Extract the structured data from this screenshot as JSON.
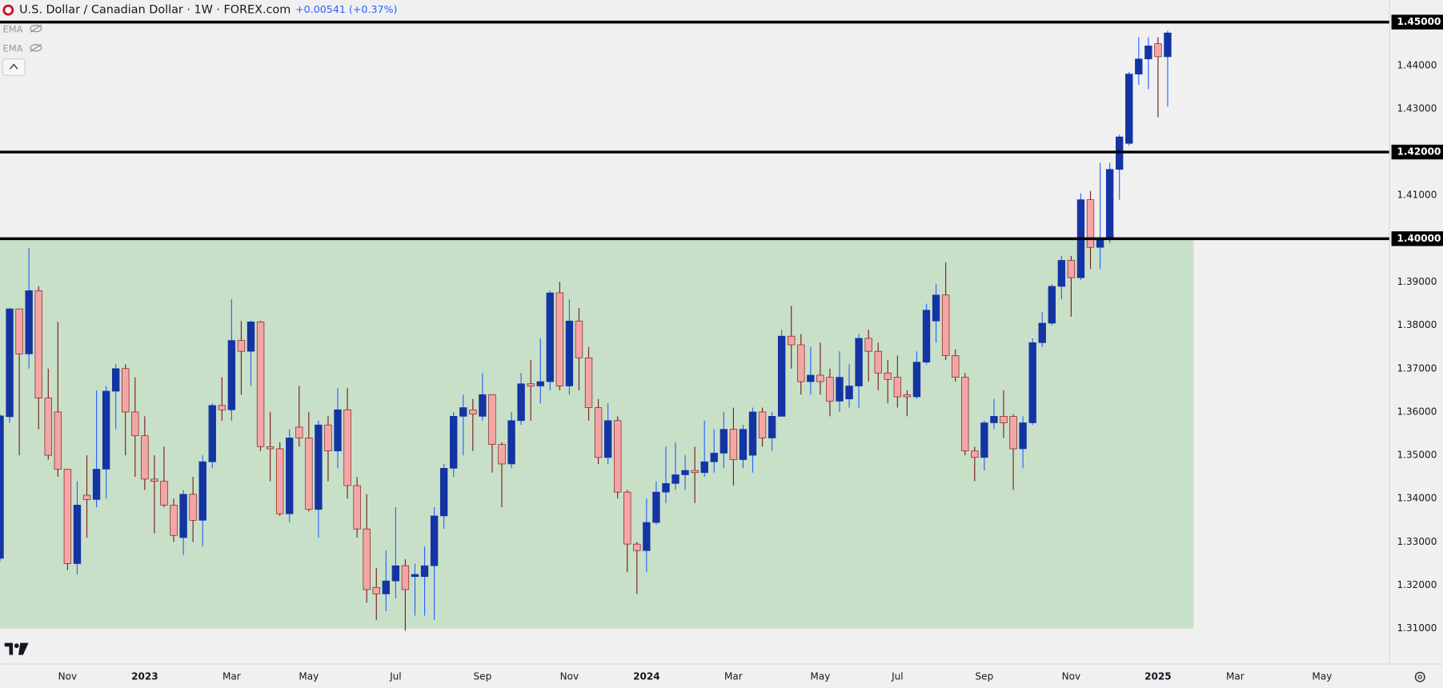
{
  "chart_data": {
    "type": "candlestick",
    "title": "U.S. Dollar / Canadian Dollar · 1W · FOREX.com",
    "change": "+0.00541 (+0.37%)",
    "indicators": [
      "EMA",
      "EMA"
    ],
    "categories": [
      null,
      null,
      null,
      null,
      null,
      null,
      null,
      "Nov",
      null,
      null,
      null,
      null,
      null,
      null,
      null,
      "2023",
      null,
      null,
      null,
      null,
      null,
      null,
      null,
      null,
      "Mar",
      null,
      null,
      null,
      null,
      null,
      null,
      null,
      "May",
      null,
      null,
      null,
      null,
      null,
      null,
      null,
      null,
      "Jul",
      null,
      null,
      null,
      null,
      null,
      null,
      null,
      null,
      "Sep",
      null,
      null,
      null,
      null,
      null,
      null,
      null,
      null,
      "Nov",
      null,
      null,
      null,
      null,
      null,
      null,
      null,
      "2024",
      null,
      null,
      null,
      null,
      null,
      null,
      null,
      null,
      "Mar",
      null,
      null,
      null,
      null,
      null,
      null,
      null,
      null,
      "May",
      null,
      null,
      null,
      null,
      null,
      null,
      null,
      "Jul",
      null,
      null,
      null,
      null,
      null,
      null,
      null,
      null,
      "Sep",
      null,
      null,
      null,
      null,
      null,
      null,
      null,
      null,
      "Nov",
      null,
      null,
      null,
      null,
      null,
      null,
      null,
      null,
      "2025",
      null,
      null,
      null,
      null,
      null,
      null,
      null,
      "Mar",
      null,
      null,
      null,
      null,
      null,
      null,
      null,
      null,
      "May",
      null,
      null,
      null,
      null,
      null,
      null
    ],
    "open": [
      1.3262,
      1.3589,
      1.3838,
      1.3734,
      1.388,
      1.3632,
      1.36,
      1.3468,
      1.325,
      1.3408,
      1.3398,
      1.3468,
      1.3648,
      1.37,
      1.36,
      1.3545,
      1.3445,
      1.344,
      1.3385,
      1.331,
      1.341,
      1.335,
      1.3485,
      1.3615,
      1.3605,
      1.3765,
      1.374,
      1.3808,
      1.352,
      1.3515,
      1.3365,
      1.3565,
      1.354,
      1.3375,
      1.357,
      1.351,
      1.3605,
      1.343,
      1.333,
      1.3195,
      1.318,
      1.321,
      1.3245,
      1.322,
      1.322,
      1.3245,
      1.336,
      1.347,
      1.359,
      1.3605,
      1.359,
      1.364,
      1.3525,
      1.348,
      1.358,
      1.3665,
      1.366,
      1.367,
      1.3875,
      1.366,
      1.381,
      1.3725,
      1.361,
      1.3495,
      1.358,
      1.3415,
      1.3295,
      1.328,
      1.3345,
      1.3415,
      1.3435,
      1.3455,
      1.3465,
      1.346,
      1.3485,
      1.3505,
      1.356,
      1.349,
      1.35,
      1.36,
      1.354,
      1.359,
      1.3775,
      1.3755,
      1.367,
      1.3685,
      1.368,
      1.3625,
      1.363,
      1.366,
      1.377,
      1.374,
      1.369,
      1.368,
      1.364,
      1.3635,
      1.3715,
      1.381,
      1.387,
      1.373,
      1.368,
      1.351,
      1.3495,
      1.3575,
      1.359,
      1.359,
      1.3515,
      1.3575,
      1.376,
      1.3805,
      1.389,
      1.395,
      1.391,
      1.409,
      1.398,
      1.4,
      1.416,
      1.422,
      1.438,
      1.4415,
      1.445,
      1.442,
      null,
      null,
      null,
      null,
      null,
      null,
      null,
      null,
      null,
      null,
      null,
      null,
      null,
      null,
      null,
      null,
      null,
      null,
      null,
      null,
      null,
      null
    ],
    "high": [
      1.3595,
      1.384,
      1.3838,
      1.3978,
      1.389,
      1.37,
      1.3808,
      1.3468,
      1.344,
      1.35,
      1.365,
      1.366,
      1.371,
      1.371,
      1.368,
      1.359,
      1.35,
      1.352,
      1.34,
      1.342,
      1.345,
      1.35,
      1.362,
      1.368,
      1.386,
      1.381,
      1.381,
      1.381,
      1.36,
      1.353,
      1.356,
      1.366,
      1.36,
      1.358,
      1.359,
      1.3655,
      1.3655,
      1.345,
      1.341,
      1.324,
      1.328,
      1.338,
      1.326,
      1.325,
      1.329,
      1.338,
      1.348,
      1.36,
      1.364,
      1.363,
      1.369,
      1.364,
      1.353,
      1.36,
      1.369,
      1.372,
      1.377,
      1.388,
      1.39,
      1.386,
      1.384,
      1.375,
      1.363,
      1.362,
      1.359,
      1.342,
      1.33,
      1.34,
      1.344,
      1.352,
      1.353,
      1.35,
      1.352,
      1.358,
      1.356,
      1.36,
      1.361,
      1.357,
      1.361,
      1.361,
      1.36,
      1.379,
      1.3845,
      1.378,
      1.375,
      1.376,
      1.37,
      1.374,
      1.371,
      1.378,
      1.379,
      1.376,
      1.372,
      1.373,
      1.365,
      1.374,
      1.385,
      1.3895,
      1.3945,
      1.3745,
      1.369,
      1.352,
      1.358,
      1.363,
      1.365,
      1.3595,
      1.359,
      1.377,
      1.383,
      1.3895,
      1.396,
      1.396,
      1.4105,
      1.411,
      1.4175,
      1.4175,
      1.424,
      1.4385,
      1.4465,
      1.4465,
      1.4465,
      1.448,
      null,
      null,
      null,
      null,
      null,
      null,
      null,
      null,
      null,
      null,
      null,
      null,
      null,
      null,
      null,
      null,
      null,
      null,
      null,
      null,
      null,
      null
    ],
    "low": [
      1.3255,
      1.3575,
      1.35,
      1.37,
      1.356,
      1.349,
      1.345,
      1.3235,
      1.3225,
      1.331,
      1.338,
      1.34,
      1.356,
      1.35,
      1.345,
      1.342,
      1.332,
      1.338,
      1.33,
      1.327,
      1.33,
      1.329,
      1.347,
      1.358,
      1.358,
      1.364,
      1.366,
      1.351,
      1.344,
      1.336,
      1.3345,
      1.352,
      1.337,
      1.331,
      1.344,
      1.347,
      1.34,
      1.331,
      1.316,
      1.312,
      1.314,
      1.317,
      1.3095,
      1.313,
      1.313,
      1.312,
      1.333,
      1.345,
      1.35,
      1.351,
      1.358,
      1.346,
      1.338,
      1.347,
      1.357,
      1.358,
      1.362,
      1.365,
      1.365,
      1.364,
      1.365,
      1.358,
      1.348,
      1.348,
      1.34,
      1.323,
      1.318,
      1.323,
      1.334,
      1.339,
      1.342,
      1.342,
      1.339,
      1.345,
      1.346,
      1.347,
      1.343,
      1.347,
      1.346,
      1.352,
      1.351,
      1.359,
      1.37,
      1.364,
      1.364,
      1.364,
      1.359,
      1.36,
      1.361,
      1.361,
      1.367,
      1.365,
      1.362,
      1.361,
      1.359,
      1.363,
      1.371,
      1.376,
      1.372,
      1.367,
      1.35,
      1.344,
      1.3465,
      1.356,
      1.354,
      1.342,
      1.347,
      1.357,
      1.375,
      1.38,
      1.386,
      1.382,
      1.3905,
      1.393,
      1.393,
      1.399,
      1.409,
      1.4215,
      1.4355,
      1.4345,
      1.428,
      1.4305,
      null,
      null,
      null,
      null,
      null,
      null,
      null,
      null,
      null,
      null,
      null,
      null,
      null,
      null,
      null,
      null,
      null,
      null,
      null,
      null,
      null,
      null
    ],
    "close": [
      1.3591,
      1.3838,
      1.3734,
      1.388,
      1.3632,
      1.35,
      1.3468,
      1.325,
      1.3385,
      1.3398,
      1.3468,
      1.3648,
      1.37,
      1.36,
      1.3545,
      1.3445,
      1.344,
      1.3385,
      1.3315,
      1.341,
      1.335,
      1.3485,
      1.3615,
      1.3605,
      1.3765,
      1.374,
      1.3808,
      1.352,
      1.3515,
      1.3365,
      1.354,
      1.354,
      1.3375,
      1.357,
      1.351,
      1.3605,
      1.343,
      1.333,
      1.319,
      1.318,
      1.321,
      1.3245,
      1.319,
      1.3225,
      1.3245,
      1.336,
      1.347,
      1.359,
      1.361,
      1.3595,
      1.364,
      1.3525,
      1.348,
      1.358,
      1.3665,
      1.366,
      1.367,
      1.3875,
      1.366,
      1.381,
      1.3725,
      1.361,
      1.3495,
      1.358,
      1.3415,
      1.3295,
      1.328,
      1.3345,
      1.3415,
      1.3435,
      1.3455,
      1.3465,
      1.346,
      1.3485,
      1.3505,
      1.356,
      1.349,
      1.356,
      1.36,
      1.354,
      1.359,
      1.3775,
      1.3755,
      1.367,
      1.3685,
      1.367,
      1.3625,
      1.368,
      1.366,
      1.377,
      1.374,
      1.369,
      1.3675,
      1.3635,
      1.3635,
      1.3715,
      1.3835,
      1.387,
      1.373,
      1.368,
      1.351,
      1.3495,
      1.3575,
      1.359,
      1.3575,
      1.3515,
      1.3575,
      1.376,
      1.3805,
      1.389,
      1.395,
      1.391,
      1.409,
      1.398,
      1.4,
      1.416,
      1.4235,
      1.438,
      1.4415,
      1.4445,
      1.442,
      1.4475,
      null,
      null,
      null,
      null,
      null,
      null,
      null,
      null,
      null,
      null,
      null,
      null,
      null,
      null,
      null,
      null,
      null,
      null,
      null,
      null,
      null,
      null
    ],
    "up_color": "#1434a4",
    "down_color": "#f4a6a6",
    "up_wick_color": "#2962ff",
    "down_wick_color": "#7f1d1d",
    "ylim": [
      1.3018,
      1.4551
    ],
    "yticks": [
      {
        "value": 1.31,
        "label": "1.31000"
      },
      {
        "value": 1.32,
        "label": "1.32000"
      },
      {
        "value": 1.33,
        "label": "1.33000"
      },
      {
        "value": 1.34,
        "label": "1.34000"
      },
      {
        "value": 1.35,
        "label": "1.35000"
      },
      {
        "value": 1.36,
        "label": "1.36000"
      },
      {
        "value": 1.37,
        "label": "1.37000"
      },
      {
        "value": 1.38,
        "label": "1.38000"
      },
      {
        "value": 1.39,
        "label": "1.39000"
      },
      {
        "value": 1.4,
        "label": "1.40000"
      },
      {
        "value": 1.41,
        "label": "1.41000"
      },
      {
        "value": 1.42,
        "label": "1.42000"
      },
      {
        "value": 1.43,
        "label": "1.43000"
      },
      {
        "value": 1.44,
        "label": "1.44000"
      },
      {
        "value": 1.45,
        "label": "1.45000"
      }
    ],
    "levels": [
      1.45,
      1.42,
      1.4
    ],
    "level_color": "#000000",
    "zone": [
      1.31,
      1.4
    ],
    "zone_color": "#c8e0c8"
  }
}
